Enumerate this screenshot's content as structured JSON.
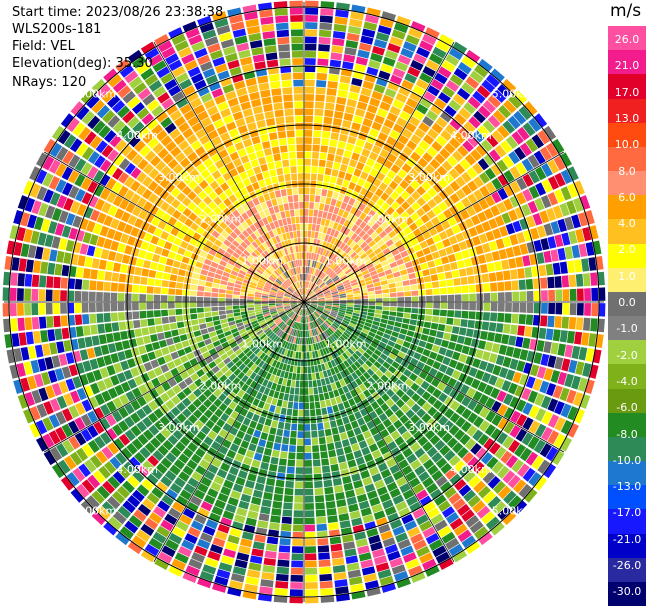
{
  "info": {
    "start_time": "Start time: 2023/08/26 23:38:38",
    "instrument": "WLS200s-181",
    "field": "Field: VEL",
    "elevation": "Elevation(deg): 35.30",
    "nrays": "NRays: 120"
  },
  "colorbar": {
    "unit": "m/s",
    "ticks": [
      "26.0",
      "21.0",
      "17.0",
      "13.0",
      "10.0",
      "8.0",
      "6.0",
      "4.0",
      "2.0",
      "1.0",
      "0.0",
      "-1.0",
      "-2.0",
      "-4.0",
      "-6.0",
      "-8.0",
      "-10.0",
      "-13.0",
      "-17.0",
      "-21.0",
      "-26.0",
      "-30.0"
    ],
    "colors": [
      "#ff4fa0",
      "#f21c8c",
      "#e0002a",
      "#f02020",
      "#ff4a10",
      "#ff6a40",
      "#ff8f70",
      "#ff9f00",
      "#ffc020",
      "#ffff00",
      "#ffef70",
      "#707070",
      "#808080",
      "#a0d040",
      "#7fb21a",
      "#6a9a10",
      "#228b22",
      "#2e8b57",
      "#1e78d0",
      "#0050ff",
      "#1818ff",
      "#0000c8",
      "#2a2aa0",
      "#00006e"
    ]
  },
  "range_labels": [
    "1.00km",
    "2.00km",
    "3.00km",
    "4.00km",
    "5.00km"
  ]
}
